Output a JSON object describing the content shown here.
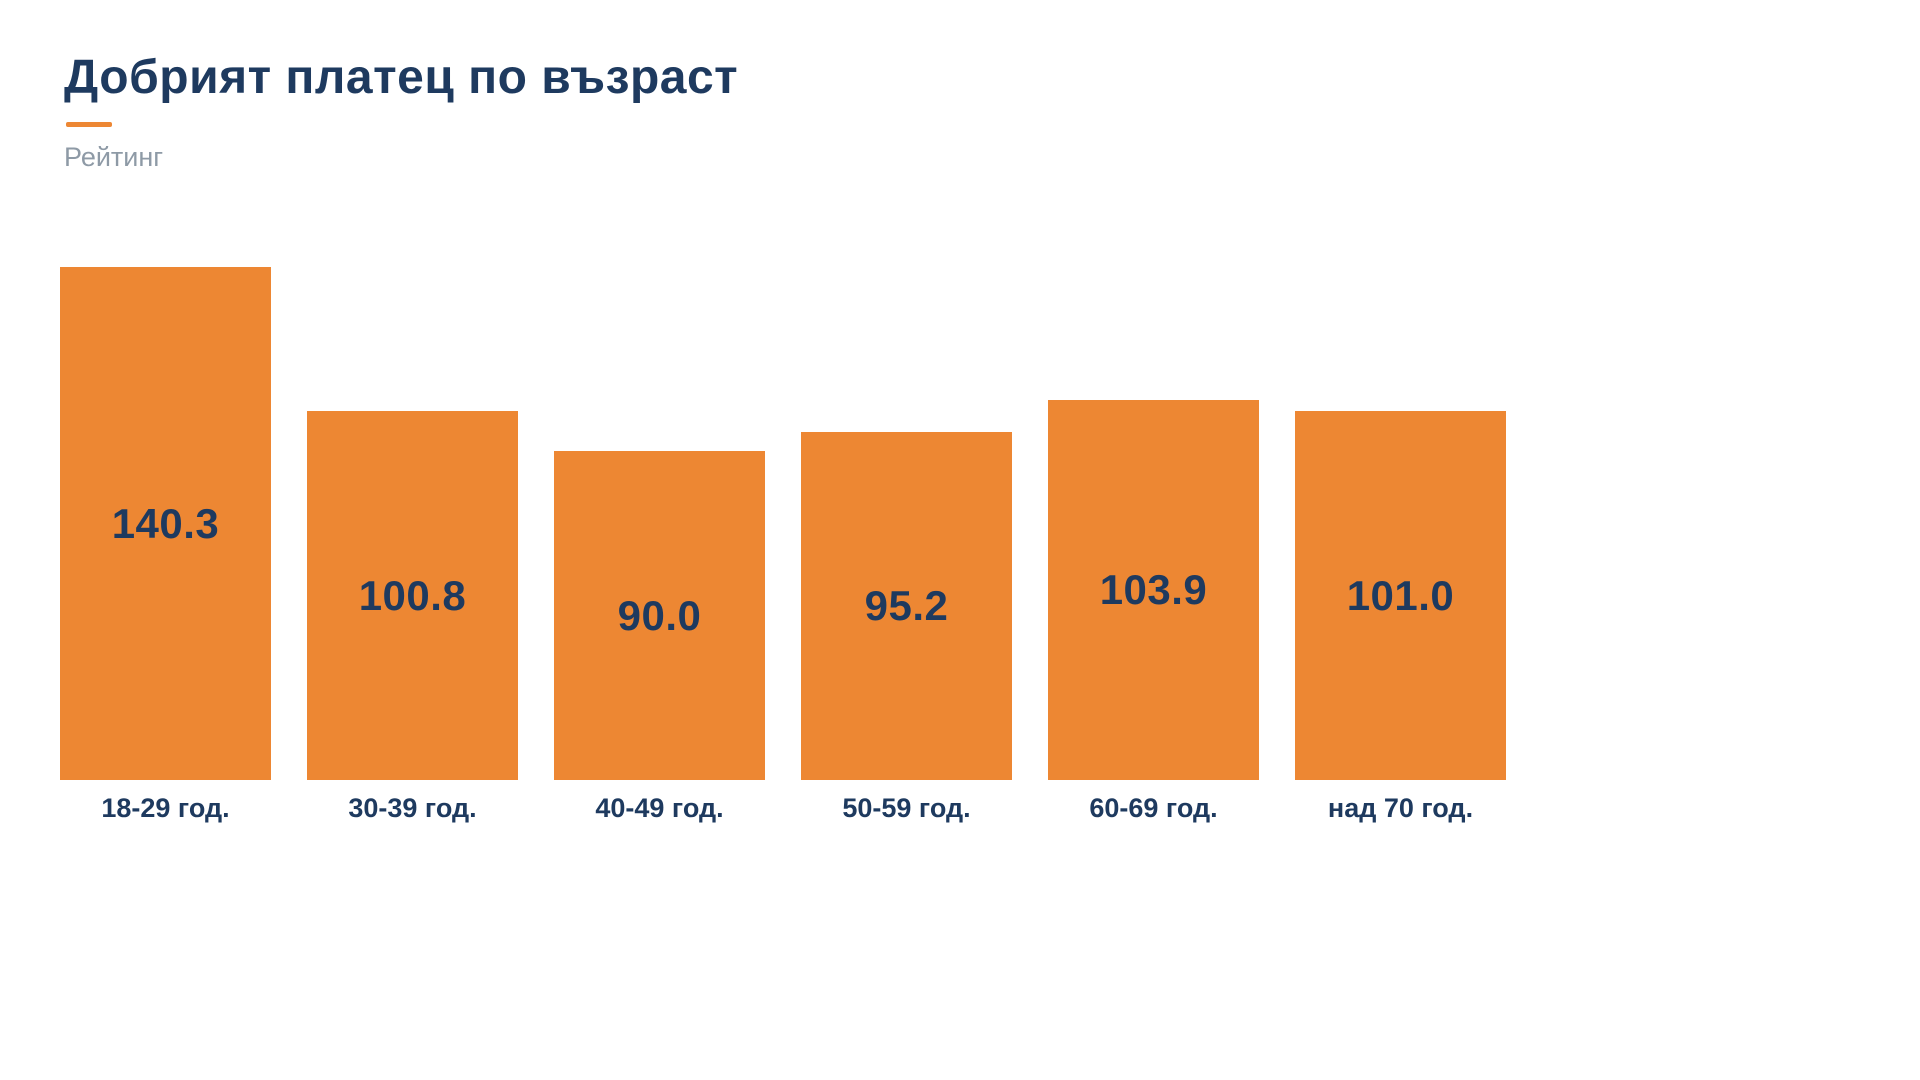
{
  "header": {
    "title": "Добрият платец по възраст",
    "subtitle": "Рейтинг"
  },
  "colors": {
    "bar": "#ED8733",
    "text": "#1E3A5F",
    "accent": "#ED8733",
    "subtitle": "#8E9AA6",
    "background": "#FFFFFF"
  },
  "chart_data": {
    "type": "bar",
    "title": "Добрият платец по възраст",
    "subtitle": "Рейтинг",
    "ylabel": "Рейтинг",
    "xlabel": "",
    "categories": [
      "18-29 год.",
      "30-39 год.",
      "40-49 год.",
      "50-59 год.",
      "60-69 год.",
      "над 70 год."
    ],
    "values": [
      140.3,
      100.8,
      90.0,
      95.2,
      103.9,
      101.0
    ],
    "ylim": [
      0,
      140.3
    ],
    "grid": false,
    "legend": "none",
    "value_labels": "inside-center",
    "bar_color": "#ED8733",
    "label_color": "#1E3A5F"
  }
}
